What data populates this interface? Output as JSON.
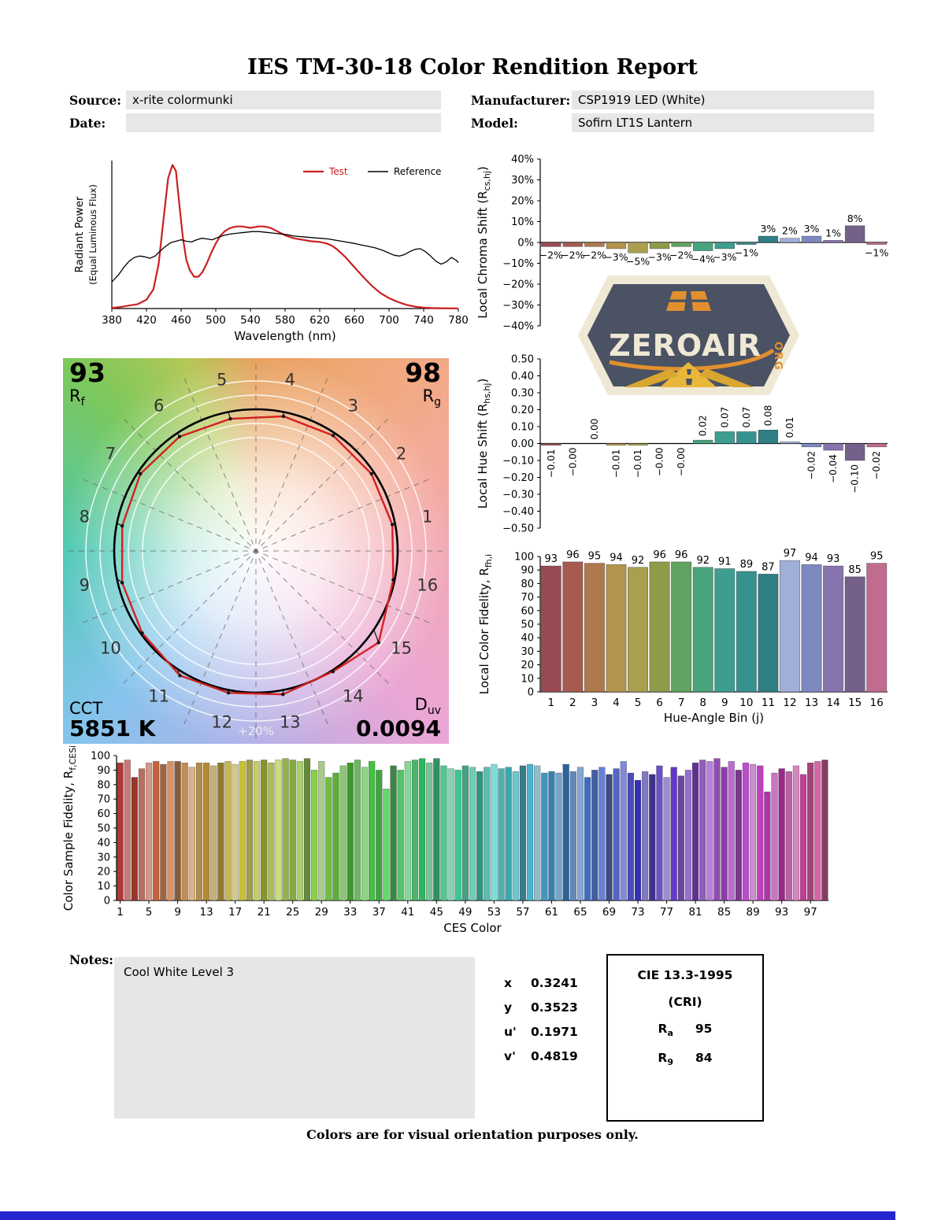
{
  "page": {
    "title": "IES TM-30-18 Color Rendition Report",
    "footer": "Colors are for visual orientation purposes only."
  },
  "header": {
    "source_label": "Source:",
    "source_value": "x-rite colormunki",
    "date_label": "Date:",
    "date_value": "",
    "manufacturer_label": "Manufacturer:",
    "manufacturer_value": "CSP1919 LED (White)",
    "model_label": "Model:",
    "model_value": "Sofirn LT1S Lantern"
  },
  "logo": {
    "name": "ZEROAIR",
    "org": "ORG"
  },
  "cvg": {
    "rf_value": "93",
    "rf_label_main": "R",
    "rf_label_sub": "f",
    "rg_value": "98",
    "rg_label_main": "R",
    "rg_label_sub": "g",
    "cct_label": "CCT",
    "cct_value": "5851 K",
    "duv_label_main": "D",
    "duv_label_sub": "uv",
    "duv_value": "0.0094",
    "ring_label": "+20%",
    "bin_numbers": [
      "1",
      "2",
      "3",
      "4",
      "5",
      "6",
      "7",
      "8",
      "9",
      "10",
      "11",
      "12",
      "13",
      "14",
      "15",
      "16"
    ]
  },
  "hue_bin_colors": [
    "#9A4A52",
    "#A55B50",
    "#AC784C",
    "#B2944C",
    "#A99F4E",
    "#8F9B4B",
    "#60A260",
    "#49A47D",
    "#3E9D8E",
    "#36928F",
    "#2F7F85",
    "#9FAFD8",
    "#7E88C0",
    "#8773AE",
    "#74608A",
    "#C06C8E"
  ],
  "chart_data": [
    {
      "id": "spd",
      "type": "line",
      "xlabel": "Wavelength (nm)",
      "ylabel": [
        "Radiant Power",
        "(Equal Luminous Flux)"
      ],
      "xlim": [
        380,
        780
      ],
      "ylim": [
        0,
        1
      ],
      "xticks": [
        380,
        420,
        460,
        500,
        540,
        580,
        620,
        660,
        700,
        740,
        780
      ],
      "legend": [
        {
          "label": "Test",
          "color": "#cc2020"
        },
        {
          "label": "Reference",
          "color": "#000000"
        }
      ],
      "series": [
        {
          "name": "Test",
          "color": "#cc2020",
          "width": 2.2,
          "x": [
            380,
            390,
            400,
            410,
            420,
            428,
            434,
            440,
            445,
            450,
            454,
            458,
            462,
            466,
            470,
            475,
            480,
            485,
            490,
            495,
            500,
            505,
            510,
            515,
            520,
            525,
            530,
            535,
            540,
            545,
            550,
            555,
            560,
            565,
            570,
            575,
            580,
            585,
            590,
            600,
            610,
            620,
            628,
            634,
            640,
            650,
            660,
            670,
            680,
            690,
            700,
            710,
            720,
            730,
            740,
            750,
            760,
            780
          ],
          "y": [
            0.005,
            0.01,
            0.02,
            0.03,
            0.06,
            0.13,
            0.3,
            0.62,
            0.88,
            0.97,
            0.93,
            0.7,
            0.48,
            0.33,
            0.26,
            0.215,
            0.215,
            0.25,
            0.31,
            0.38,
            0.44,
            0.49,
            0.52,
            0.54,
            0.55,
            0.555,
            0.555,
            0.55,
            0.545,
            0.55,
            0.555,
            0.555,
            0.55,
            0.54,
            0.525,
            0.51,
            0.495,
            0.485,
            0.475,
            0.465,
            0.455,
            0.45,
            0.44,
            0.425,
            0.4,
            0.345,
            0.28,
            0.215,
            0.155,
            0.105,
            0.07,
            0.045,
            0.025,
            0.013,
            0.006,
            0.003,
            0.002,
            0.001
          ]
        },
        {
          "name": "Reference",
          "color": "#000000",
          "width": 1.3,
          "x": [
            380,
            388,
            394,
            400,
            406,
            412,
            418,
            424,
            430,
            436,
            442,
            448,
            454,
            460,
            466,
            472,
            478,
            484,
            490,
            496,
            502,
            510,
            518,
            526,
            534,
            542,
            550,
            558,
            566,
            574,
            582,
            590,
            600,
            610,
            620,
            630,
            640,
            650,
            660,
            668,
            676,
            684,
            692,
            700,
            706,
            712,
            718,
            724,
            730,
            736,
            742,
            748,
            754,
            760,
            766,
            772,
            778,
            780
          ],
          "y": [
            0.18,
            0.23,
            0.28,
            0.32,
            0.345,
            0.355,
            0.35,
            0.34,
            0.355,
            0.39,
            0.42,
            0.445,
            0.455,
            0.465,
            0.455,
            0.45,
            0.465,
            0.475,
            0.47,
            0.465,
            0.48,
            0.495,
            0.505,
            0.51,
            0.515,
            0.52,
            0.52,
            0.515,
            0.51,
            0.505,
            0.5,
            0.49,
            0.485,
            0.48,
            0.475,
            0.47,
            0.46,
            0.45,
            0.44,
            0.43,
            0.42,
            0.41,
            0.395,
            0.375,
            0.36,
            0.355,
            0.365,
            0.385,
            0.4,
            0.405,
            0.385,
            0.355,
            0.32,
            0.3,
            0.315,
            0.345,
            0.325,
            0.31
          ]
        }
      ]
    },
    {
      "id": "chroma_shift",
      "type": "bar",
      "ylabel_parts": {
        "pre": "Local Chroma Shift (R",
        "sub": "cs,hj",
        "post": ")"
      },
      "ylim": [
        -40,
        40
      ],
      "ytick_step": 10,
      "ytick_format": "pct",
      "values": [
        -2,
        -2,
        -2,
        -3,
        -5,
        -3,
        -2,
        -4,
        -3,
        -1,
        3,
        2,
        3,
        1,
        8,
        -1
      ],
      "labels": [
        "−2%",
        "−2%",
        "−2%",
        "−3%",
        "−5%",
        "−3%",
        "−2%",
        "−4%",
        "−3%",
        "−1%",
        "3%",
        "2%",
        "3%",
        "1%",
        "8%",
        "−1%"
      ]
    },
    {
      "id": "hue_shift",
      "type": "bar",
      "ylabel_parts": {
        "pre": "Local Hue Shift (R",
        "sub": "hs,hj",
        "post": ")"
      },
      "ylim": [
        -0.5,
        0.5
      ],
      "ytick_step": 0.1,
      "ytick_format": "dec",
      "values": [
        -0.01,
        0,
        0,
        -0.01,
        -0.01,
        0,
        0,
        0.02,
        0.07,
        0.07,
        0.08,
        0.01,
        -0.02,
        -0.04,
        -0.1,
        -0.02
      ],
      "labels": [
        "−0.01",
        "−0.00",
        "0.00",
        "−0.01",
        "−0.01",
        "−0.00",
        "−0.00",
        "0.02",
        "0.07",
        "0.07",
        "0.08",
        "0.01",
        "−0.02",
        "−0.04",
        "−0.10",
        "−0.02"
      ]
    },
    {
      "id": "local_fidelity",
      "type": "bar",
      "ylabel_parts": {
        "pre": "Local Color Fidelity, R",
        "sub": "fh,i",
        "post": ""
      },
      "xlabel": "Hue-Angle Bin (j)",
      "ylim": [
        0,
        100
      ],
      "ytick_step": 10,
      "xticklabels": [
        "1",
        "2",
        "3",
        "4",
        "5",
        "6",
        "7",
        "8",
        "9",
        "10",
        "11",
        "12",
        "13",
        "14",
        "15",
        "16"
      ],
      "values": [
        93,
        96,
        95,
        94,
        92,
        96,
        96,
        92,
        91,
        89,
        87,
        97,
        94,
        93,
        85,
        95
      ]
    },
    {
      "id": "ces_fidelity",
      "type": "bar",
      "ylabel_parts": {
        "pre": "Color Sample Fidelity, R",
        "sub": "f,CESi",
        "post": ""
      },
      "xlabel": "CES Color",
      "ylim": [
        0,
        100
      ],
      "ytick_step": 10,
      "xticks": [
        1,
        5,
        9,
        13,
        17,
        21,
        25,
        29,
        33,
        37,
        41,
        45,
        49,
        53,
        57,
        61,
        65,
        69,
        73,
        77,
        81,
        85,
        89,
        93,
        97
      ],
      "values": [
        95,
        97,
        85,
        91,
        95,
        96,
        94,
        96,
        96,
        95,
        92,
        95,
        95,
        93,
        95,
        96,
        94,
        96,
        97,
        96,
        97,
        95,
        97,
        98,
        97,
        96,
        98,
        90,
        96,
        85,
        88,
        93,
        95,
        97,
        92,
        96,
        90,
        77,
        93,
        90,
        96,
        97,
        98,
        95,
        98,
        93,
        91,
        90,
        93,
        92,
        89,
        92,
        94,
        91,
        92,
        89,
        93,
        94,
        93,
        88,
        89,
        88,
        94,
        89,
        92,
        85,
        90,
        92,
        87,
        91,
        96,
        88,
        83,
        89,
        87,
        93,
        85,
        92,
        86,
        90,
        95,
        97,
        96,
        98,
        92,
        96,
        90,
        95,
        94,
        93,
        75,
        88,
        91,
        89,
        93,
        87,
        95,
        96,
        97
      ]
    }
  ],
  "notes": {
    "label": "Notes:",
    "value": "Cool White Level 3"
  },
  "chromaticity": {
    "rows": [
      {
        "label": "x",
        "value": "0.3241"
      },
      {
        "label": "y",
        "value": "0.3523"
      },
      {
        "label": "u'",
        "value": "0.1971"
      },
      {
        "label": "v'",
        "value": "0.4819"
      }
    ]
  },
  "cie": {
    "title": "CIE 13.3-1995",
    "subtitle": "(CRI)",
    "ra_main": "R",
    "ra_sub": "a",
    "ra_value": "95",
    "r9_main": "R",
    "r9_sub": "9",
    "r9_value": "84"
  }
}
